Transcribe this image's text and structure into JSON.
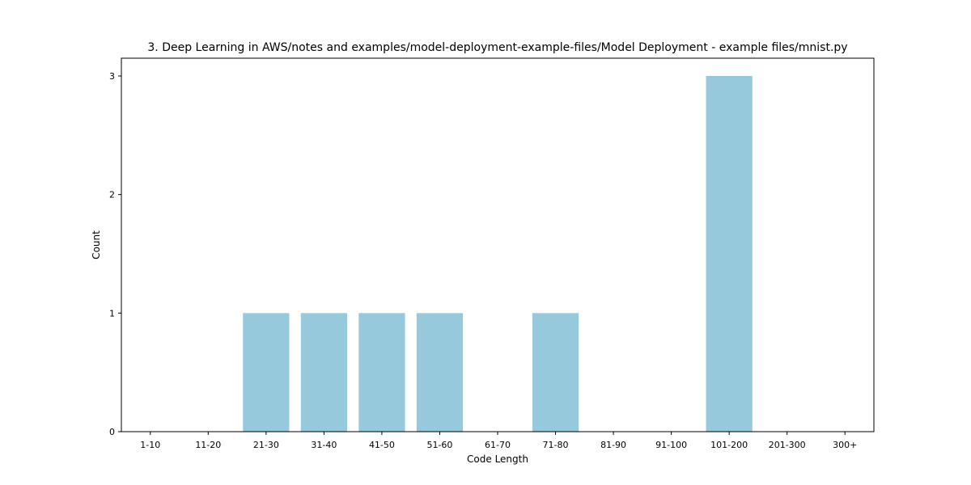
{
  "chart_data": {
    "type": "bar",
    "title": "3. Deep Learning in AWS/notes and examples/model-deployment-example-files/Model Deployment - example files/mnist.py",
    "xlabel": "Code Length",
    "ylabel": "Count",
    "categories": [
      "1-10",
      "11-20",
      "21-30",
      "31-40",
      "41-50",
      "51-60",
      "61-70",
      "71-80",
      "81-90",
      "91-100",
      "101-200",
      "201-300",
      "300+"
    ],
    "values": [
      0,
      0,
      1,
      1,
      1,
      1,
      0,
      1,
      0,
      0,
      3,
      0,
      0
    ],
    "ylim": [
      0,
      3.15
    ],
    "yticks": [
      0,
      1,
      2,
      3
    ],
    "grid": false,
    "bar_color": "#96c9dc"
  }
}
